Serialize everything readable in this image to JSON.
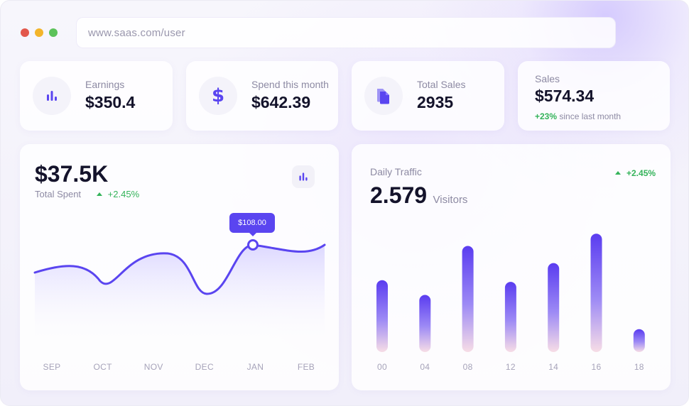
{
  "browser": {
    "url": "www.saas.com/user"
  },
  "stats": [
    {
      "label": "Earnings",
      "value": "$350.4",
      "icon": "bar-chart-icon"
    },
    {
      "label": "Spend this month",
      "value": "$642.39",
      "icon": "dollar-icon"
    },
    {
      "label": "Total Sales",
      "value": "2935",
      "icon": "document-icon"
    }
  ],
  "sales": {
    "label": "Sales",
    "value": "$574.34",
    "change": "+23%",
    "suffix": "since last month"
  },
  "spent": {
    "value": "$37.5K",
    "label": "Total Spent",
    "change": "+2.45%",
    "tooltip": "$108.00",
    "icon": "bar-chart-icon"
  },
  "traffic": {
    "title": "Daily Traffic",
    "value": "2.579",
    "unit": "Visitors",
    "change": "+2.45%"
  },
  "colors": {
    "accent": "#5a45f0",
    "positive": "#34b35a"
  },
  "chart_data": [
    {
      "type": "area",
      "categories": [
        "SEP",
        "OCT",
        "NOV",
        "DEC",
        "JAN",
        "FEB"
      ],
      "title": "",
      "grid": false,
      "highlight": {
        "category": "JAN",
        "label": "$108.00"
      }
    },
    {
      "type": "bar",
      "categories": [
        "00",
        "04",
        "08",
        "12",
        "14",
        "16",
        "18"
      ],
      "values": [
        88,
        70,
        130,
        86,
        109,
        145,
        28
      ],
      "ylim": [
        0,
        160
      ],
      "grid": false,
      "title": ""
    }
  ]
}
